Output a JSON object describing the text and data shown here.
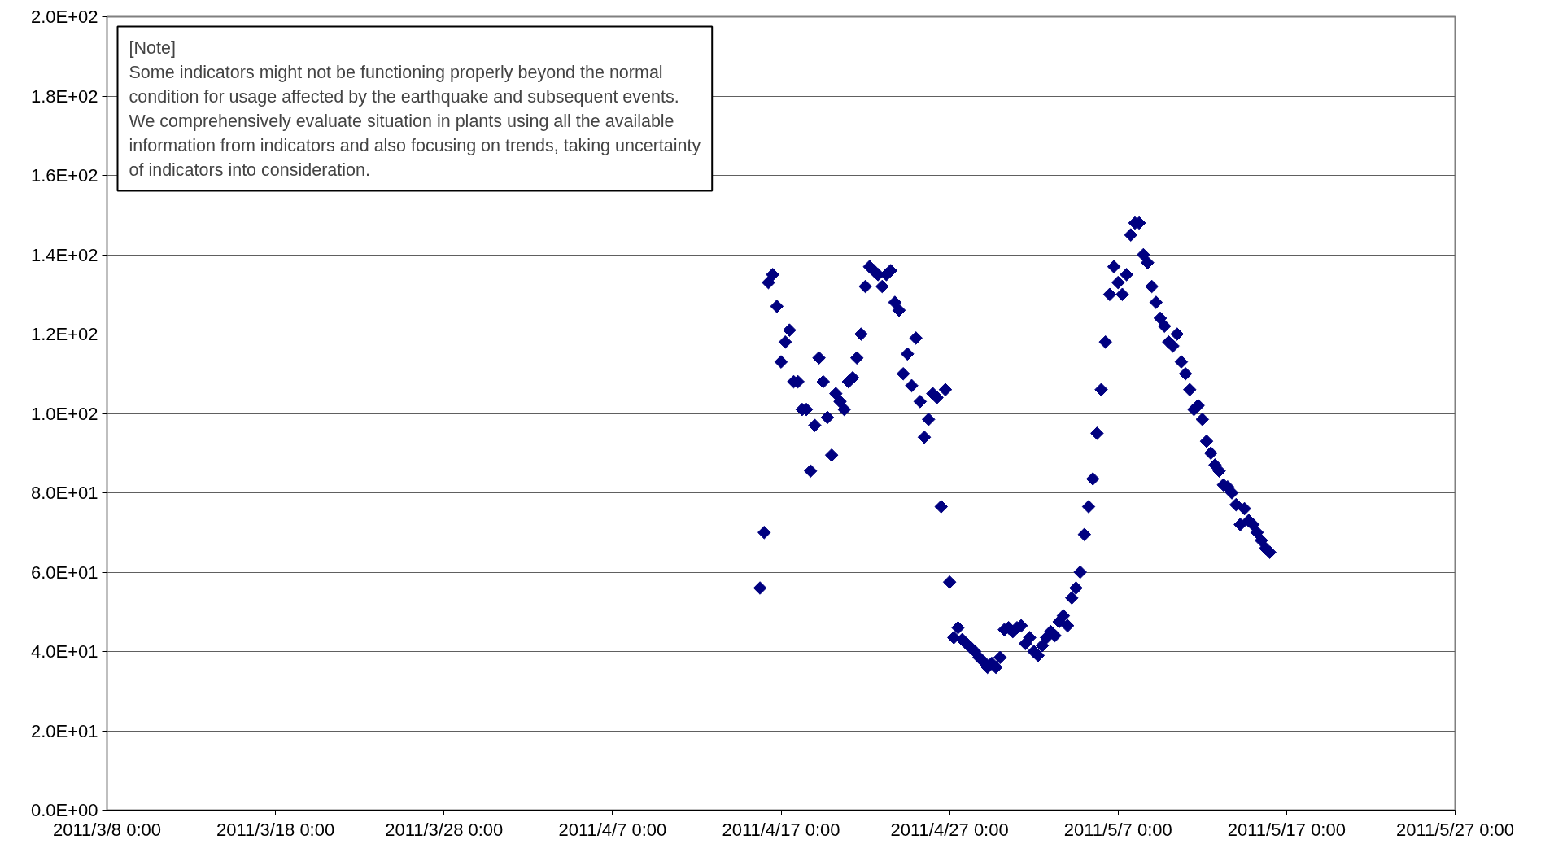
{
  "chart_data": {
    "type": "scatter",
    "marker": "diamond",
    "grid": "y",
    "color": "#000080",
    "annotations": [
      "[Note]\nSome indicators might not be functioning properly beyond the normal\ncondition for usage affected by the earthquake and subsequent events.\nWe comprehensively evaluate situation in plants using all the available\ninformation from indicators and also focusing on trends, taking uncertainty\nof indicators into consideration."
    ],
    "xlim": [
      "2011-03-08",
      "2011-05-27"
    ],
    "xticks": [
      {
        "value": "2011-03-08",
        "label": "2011/3/8 0:00"
      },
      {
        "value": "2011-03-18",
        "label": "2011/3/18 0:00"
      },
      {
        "value": "2011-03-28",
        "label": "2011/3/28 0:00"
      },
      {
        "value": "2011-04-07",
        "label": "2011/4/7 0:00"
      },
      {
        "value": "2011-04-17",
        "label": "2011/4/17 0:00"
      },
      {
        "value": "2011-04-27",
        "label": "2011/4/27 0:00"
      },
      {
        "value": "2011-05-07",
        "label": "2011/5/7 0:00"
      },
      {
        "value": "2011-05-17",
        "label": "2011/5/17 0:00"
      },
      {
        "value": "2011-05-27",
        "label": "2011/5/27 0:00"
      }
    ],
    "ylim": [
      0,
      200
    ],
    "yticks": [
      {
        "value": 0,
        "label": "0.0E+00"
      },
      {
        "value": 20,
        "label": "2.0E+01"
      },
      {
        "value": 40,
        "label": "4.0E+01"
      },
      {
        "value": 60,
        "label": "6.0E+01"
      },
      {
        "value": 80,
        "label": "8.0E+01"
      },
      {
        "value": 100,
        "label": "1.0E+02"
      },
      {
        "value": 120,
        "label": "1.2E+02"
      },
      {
        "value": 140,
        "label": "1.4E+02"
      },
      {
        "value": 160,
        "label": "1.6E+02"
      },
      {
        "value": 180,
        "label": "1.8E+02"
      },
      {
        "value": 200,
        "label": "2.0E+02"
      }
    ],
    "x": [
      "2011-04-15T18:00",
      "2011-04-16T00:00",
      "2011-04-16T06:00",
      "2011-04-16T12:00",
      "2011-04-16T18:00",
      "2011-04-17T00:00",
      "2011-04-17T06:00",
      "2011-04-17T12:00",
      "2011-04-17T18:00",
      "2011-04-18T00:00",
      "2011-04-18T06:00",
      "2011-04-18T12:00",
      "2011-04-18T18:00",
      "2011-04-19T00:00",
      "2011-04-19T06:00",
      "2011-04-19T12:00",
      "2011-04-19T18:00",
      "2011-04-20T00:00",
      "2011-04-20T06:00",
      "2011-04-20T12:00",
      "2011-04-20T18:00",
      "2011-04-21T00:00",
      "2011-04-21T06:00",
      "2011-04-21T12:00",
      "2011-04-21T18:00",
      "2011-04-22T00:00",
      "2011-04-22T06:00",
      "2011-04-22T12:00",
      "2011-04-22T18:00",
      "2011-04-23T00:00",
      "2011-04-23T06:00",
      "2011-04-23T12:00",
      "2011-04-23T18:00",
      "2011-04-24T00:00",
      "2011-04-24T06:00",
      "2011-04-24T12:00",
      "2011-04-24T18:00",
      "2011-04-25T00:00",
      "2011-04-25T06:00",
      "2011-04-25T12:00",
      "2011-04-25T18:00",
      "2011-04-26T00:00",
      "2011-04-26T06:00",
      "2011-04-26T12:00",
      "2011-04-26T18:00",
      "2011-04-27T00:00",
      "2011-04-27T06:00",
      "2011-04-27T12:00",
      "2011-04-27T18:00",
      "2011-04-28T00:00",
      "2011-04-28T06:00",
      "2011-04-28T12:00",
      "2011-04-28T18:00",
      "2011-04-29T00:00",
      "2011-04-29T06:00",
      "2011-04-29T12:00",
      "2011-04-29T18:00",
      "2011-04-30T00:00",
      "2011-04-30T06:00",
      "2011-04-30T12:00",
      "2011-04-30T18:00",
      "2011-05-01T00:00",
      "2011-05-01T06:00",
      "2011-05-01T12:00",
      "2011-05-01T18:00",
      "2011-05-02T00:00",
      "2011-05-02T06:00",
      "2011-05-02T12:00",
      "2011-05-02T18:00",
      "2011-05-03T00:00",
      "2011-05-03T06:00",
      "2011-05-03T12:00",
      "2011-05-03T18:00",
      "2011-05-04T00:00",
      "2011-05-04T06:00",
      "2011-05-04T12:00",
      "2011-05-04T18:00",
      "2011-05-05T00:00",
      "2011-05-05T06:00",
      "2011-05-05T12:00",
      "2011-05-05T18:00",
      "2011-05-06T00:00",
      "2011-05-06T06:00",
      "2011-05-06T12:00",
      "2011-05-06T18:00",
      "2011-05-07T00:00",
      "2011-05-07T06:00",
      "2011-05-07T12:00",
      "2011-05-07T18:00",
      "2011-05-08T00:00",
      "2011-05-08T06:00",
      "2011-05-08T12:00",
      "2011-05-08T18:00",
      "2011-05-09T00:00",
      "2011-05-09T06:00",
      "2011-05-09T12:00",
      "2011-05-09T18:00",
      "2011-05-10T00:00",
      "2011-05-10T06:00",
      "2011-05-10T12:00",
      "2011-05-10T18:00",
      "2011-05-11T00:00",
      "2011-05-11T06:00",
      "2011-05-11T12:00",
      "2011-05-11T18:00",
      "2011-05-12T00:00",
      "2011-05-12T06:00",
      "2011-05-12T12:00",
      "2011-05-12T18:00",
      "2011-05-13T00:00",
      "2011-05-13T06:00",
      "2011-05-13T12:00",
      "2011-05-13T18:00",
      "2011-05-14T00:00",
      "2011-05-14T06:00",
      "2011-05-14T12:00",
      "2011-05-14T18:00",
      "2011-05-15T00:00",
      "2011-05-15T06:00",
      "2011-05-15T12:00",
      "2011-05-15T18:00",
      "2011-05-16T00:00"
    ],
    "values": [
      56,
      70,
      133,
      135,
      127,
      113,
      118,
      121,
      108,
      108,
      101,
      101,
      85.5,
      97,
      114,
      108,
      99,
      89.5,
      105,
      103,
      101,
      108,
      109,
      114,
      120,
      132,
      137,
      136,
      135,
      132,
      135,
      136,
      128,
      126,
      110,
      115,
      107,
      119,
      103,
      94,
      98.5,
      105,
      104,
      76.5,
      106,
      57.5,
      43.5,
      46,
      43,
      42,
      41,
      40,
      38.5,
      37.5,
      36,
      37,
      36,
      38.5,
      45.5,
      46,
      45,
      46,
      46.5,
      42,
      43.5,
      40,
      39,
      41.5,
      43.5,
      45,
      44,
      47.5,
      49,
      46.5,
      53.5,
      56,
      60,
      69.5,
      76.5,
      83.5,
      95,
      106,
      118,
      130,
      137,
      133,
      130,
      135,
      145,
      148,
      148,
      140,
      138,
      132,
      128,
      124,
      122,
      118,
      117,
      120,
      113,
      110,
      106,
      101,
      102,
      98.5,
      93,
      90,
      87,
      85.5,
      82,
      81.5,
      80,
      77,
      72,
      76,
      73,
      72,
      70,
      68,
      66,
      65
    ]
  }
}
